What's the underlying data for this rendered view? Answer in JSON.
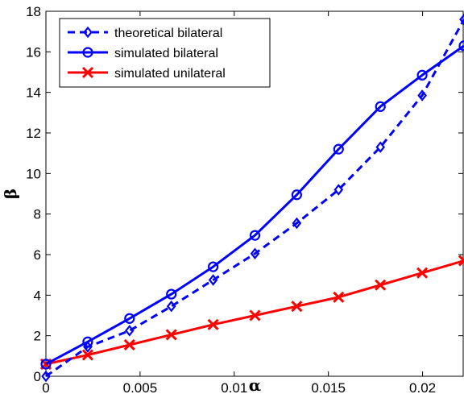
{
  "chart_data": {
    "type": "line",
    "title": "",
    "xlabel": "α",
    "ylabel": "β",
    "xlim": [
      0,
      0.0222
    ],
    "ylim": [
      0,
      18
    ],
    "grid": false,
    "legend_position": "top-left",
    "x_ticks": [
      "0",
      "0.005",
      "0.01",
      "0.015",
      "0.02"
    ],
    "x_tick_values": [
      0,
      0.005,
      0.01,
      0.015,
      0.02
    ],
    "y_ticks": [
      "0",
      "2",
      "4",
      "6",
      "8",
      "10",
      "12",
      "14",
      "16",
      "18"
    ],
    "y_tick_values": [
      0,
      2,
      4,
      6,
      8,
      10,
      12,
      14,
      16,
      18
    ],
    "x": [
      0,
      0.00222,
      0.00444,
      0.00666,
      0.00888,
      0.0111,
      0.01332,
      0.01554,
      0.01776,
      0.01998,
      0.0222
    ],
    "series": [
      {
        "name": "theoretical bilateral",
        "color": "#0000ff",
        "line_style": "dashed",
        "marker": "diamond",
        "values": [
          0.0,
          1.45,
          2.25,
          3.45,
          4.75,
          6.05,
          7.55,
          9.2,
          11.3,
          13.85,
          17.6
        ]
      },
      {
        "name": "simulated bilateral",
        "color": "#0000ff",
        "line_style": "solid",
        "marker": "circle",
        "values": [
          0.6,
          1.7,
          2.85,
          4.05,
          5.4,
          6.95,
          8.95,
          11.2,
          13.3,
          14.85,
          16.3
        ]
      },
      {
        "name": "simulated unilateral",
        "color": "#ff0000",
        "line_style": "solid",
        "marker": "x",
        "values": [
          0.6,
          1.05,
          1.55,
          2.05,
          2.55,
          3.0,
          3.45,
          3.9,
          4.5,
          5.1,
          5.7
        ]
      }
    ]
  }
}
